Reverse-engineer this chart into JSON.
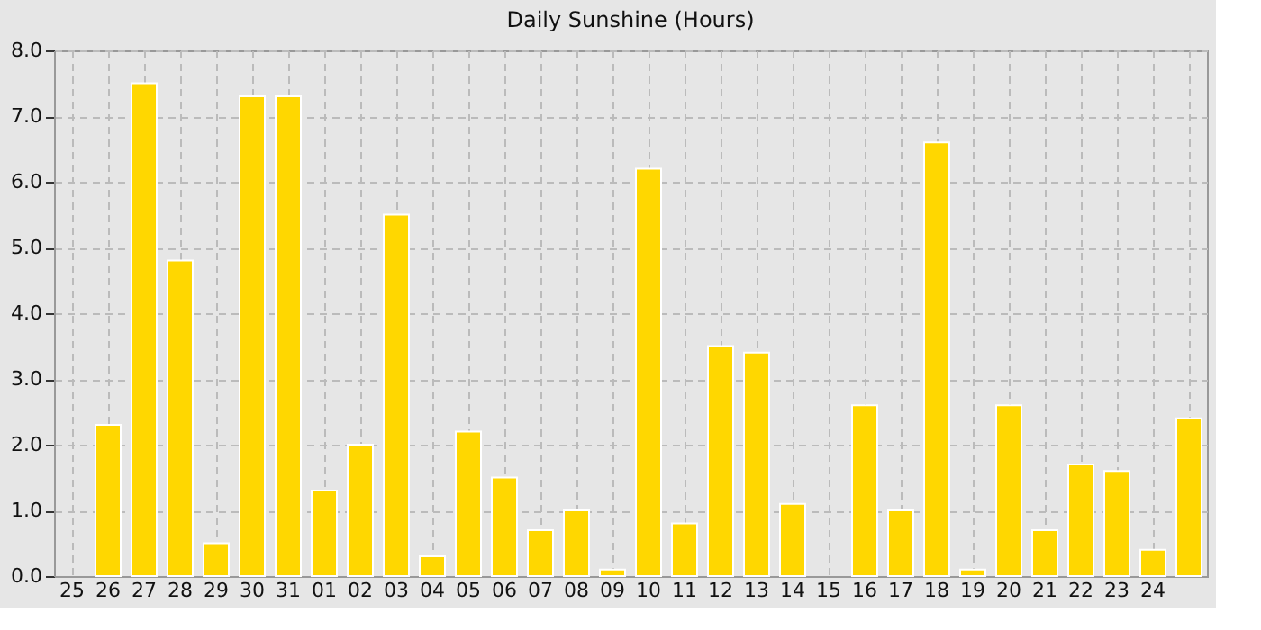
{
  "chart_data": {
    "type": "bar",
    "title": "Daily Sunshine (Hours)",
    "categories": [
      "25",
      "26",
      "27",
      "28",
      "29",
      "30",
      "31",
      "01",
      "02",
      "03",
      "04",
      "05",
      "06",
      "07",
      "08",
      "09",
      "10",
      "11",
      "12",
      "13",
      "14",
      "15",
      "16",
      "17",
      "18",
      "19",
      "20",
      "21",
      "22",
      "23",
      "24",
      null
    ],
    "values": [
      null,
      2.3,
      7.5,
      4.8,
      0.5,
      7.3,
      7.3,
      1.3,
      2.0,
      5.5,
      0.3,
      2.2,
      1.5,
      0.7,
      1.0,
      0.1,
      6.2,
      0.8,
      3.5,
      3.4,
      1.1,
      null,
      2.6,
      1.0,
      6.6,
      0.1,
      2.6,
      0.7,
      1.7,
      1.6,
      0.4,
      2.4
    ],
    "color": "#ffd700",
    "ylim": [
      0,
      8
    ],
    "yticks": [
      {
        "value": 0,
        "label": "0.0"
      },
      {
        "value": 1,
        "label": "1.0"
      },
      {
        "value": 2,
        "label": "2.0"
      },
      {
        "value": 3,
        "label": "3.0"
      },
      {
        "value": 4,
        "label": "4.0"
      },
      {
        "value": 5,
        "label": "5.0"
      },
      {
        "value": 6,
        "label": "6.0"
      },
      {
        "value": 7,
        "label": "7.0"
      },
      {
        "value": 8,
        "label": "8.0"
      }
    ],
    "grid": true
  }
}
